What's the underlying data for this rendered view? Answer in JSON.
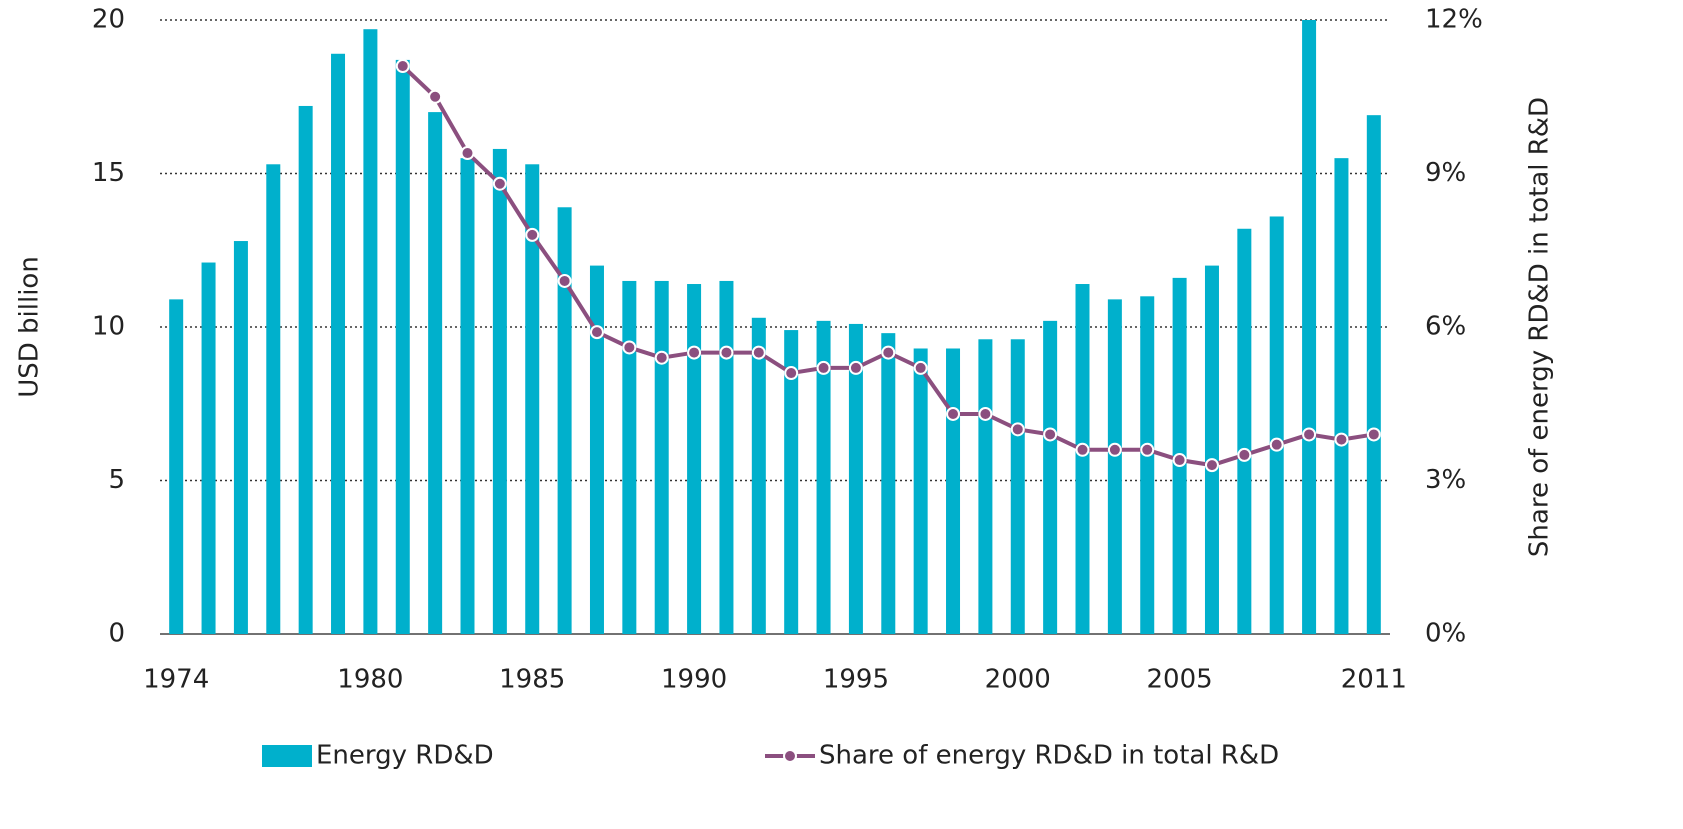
{
  "chart_data": {
    "type": "bar",
    "categories": [
      "1974",
      null,
      null,
      null,
      null,
      null,
      "1980",
      null,
      null,
      null,
      null,
      "1985",
      null,
      null,
      null,
      null,
      "1990",
      null,
      null,
      null,
      null,
      "1995",
      null,
      null,
      null,
      null,
      "2000",
      null,
      null,
      null,
      null,
      "2005",
      null,
      null,
      null,
      null,
      null,
      "2011"
    ],
    "series": [
      {
        "name": "Energy RD&D",
        "type": "bar",
        "color": "#00b0cc",
        "values": [
          10.9,
          12.1,
          12.8,
          15.3,
          17.2,
          18.9,
          19.7,
          18.7,
          17.0,
          15.5,
          15.8,
          15.3,
          13.9,
          12.0,
          11.5,
          11.5,
          11.4,
          11.5,
          10.3,
          9.9,
          10.2,
          10.1,
          9.8,
          9.3,
          9.3,
          9.6,
          9.6,
          10.2,
          11.4,
          10.9,
          11.0,
          11.6,
          12.0,
          13.2,
          13.6,
          20.0,
          15.5,
          16.9
        ]
      },
      {
        "name": "Share of energy RD&D in total R&D",
        "type": "line",
        "axis": "y2",
        "color": "#8b4f7f",
        "values": [
          null,
          null,
          null,
          null,
          null,
          null,
          null,
          11.1,
          10.5,
          9.4,
          8.8,
          7.8,
          6.9,
          5.9,
          5.6,
          5.4,
          5.5,
          5.5,
          5.5,
          5.1,
          5.2,
          5.2,
          5.5,
          5.2,
          4.3,
          4.3,
          4.0,
          3.9,
          3.6,
          3.6,
          3.6,
          3.4,
          3.3,
          3.5,
          3.7,
          3.9,
          3.8,
          3.9
        ]
      }
    ],
    "y_label": "USD billion",
    "y2_label": "Share of energy RD&D in total R&D",
    "ylim": [
      0,
      20
    ],
    "yticks": [
      0,
      5,
      10,
      15,
      20
    ],
    "y2lim": [
      0,
      12
    ],
    "y2ticks": [
      {
        "value": 0,
        "label": "0%"
      },
      {
        "value": 3,
        "label": "3%"
      },
      {
        "value": 6,
        "label": "6%"
      },
      {
        "value": 9,
        "label": "9%"
      },
      {
        "value": 12,
        "label": "12%"
      }
    ],
    "grid": true,
    "legend": "bottom"
  }
}
